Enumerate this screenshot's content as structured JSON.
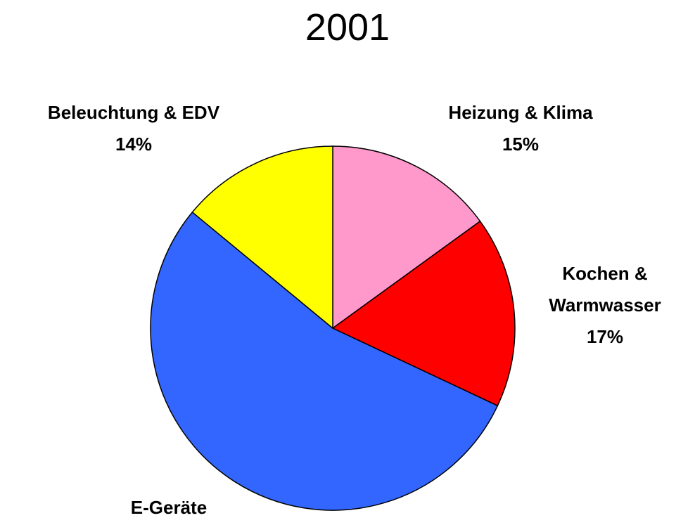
{
  "chart_data": {
    "type": "pie",
    "title": "2001",
    "categories": [
      "Heizung & Klima",
      "Kochen & Warmwasser",
      "E-Geräte",
      "Beleuchtung & EDV"
    ],
    "values": [
      15,
      17,
      54,
      14
    ],
    "value_labels": [
      "15%",
      "17%",
      null,
      "14%"
    ],
    "colors": [
      "#ff99cc",
      "#ff0000",
      "#3366ff",
      "#ffff00"
    ]
  }
}
